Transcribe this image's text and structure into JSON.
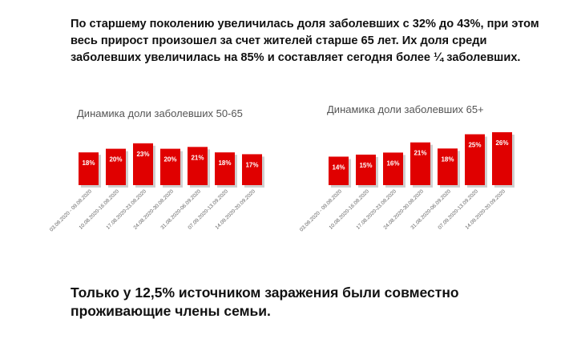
{
  "intro_text": "По старшему поколению увеличилась доля заболевших с 32% до 43%, при этом весь прирост произошел за счет жителей старше 65 лет. Их доля среди заболевших увеличилась на 85% и составляет сегодня более ¼ заболевших.",
  "outro_text": "Только у 12,5% источником заражения были совместно проживающие члены семьи.",
  "colors": {
    "bar": "#e00000",
    "shadow": "#cfcfcf"
  },
  "chart_data": [
    {
      "type": "bar",
      "title": "Динамика доли заболевших 50-65",
      "categories": [
        "03.08.2020 - 09.08.2020",
        "10.08.2020-16.08.2020",
        "17.08.2020-23.08.2020",
        "24.08.2020-30.08.2020",
        "31.08.2020-06.09.2020",
        "07.09.2020-13.09.2020",
        "14.09.2020-20.09.2020"
      ],
      "values": [
        18,
        20,
        23,
        20,
        21,
        18,
        17
      ],
      "labels": [
        "18%",
        "20%",
        "23%",
        "20%",
        "21%",
        "18%",
        "17%"
      ],
      "ylim": [
        0,
        26
      ],
      "grid": false
    },
    {
      "type": "bar",
      "title": "Динамика доли заболевших 65+",
      "categories": [
        "03.08.2020 - 09.08.2020",
        "10.08.2020-16.08.2020",
        "17.08.2020-23.08.2020",
        "24.08.2020-30.08.2020",
        "31.08.2020-06.09.2020",
        "07.09.2020-13.09.2020",
        "14.09.2020-20.09.2020"
      ],
      "values": [
        14,
        15,
        16,
        21,
        18,
        25,
        26
      ],
      "labels": [
        "14%",
        "15%",
        "16%",
        "21%",
        "18%",
        "25%",
        "26%"
      ],
      "ylim": [
        0,
        26
      ],
      "grid": false
    }
  ]
}
